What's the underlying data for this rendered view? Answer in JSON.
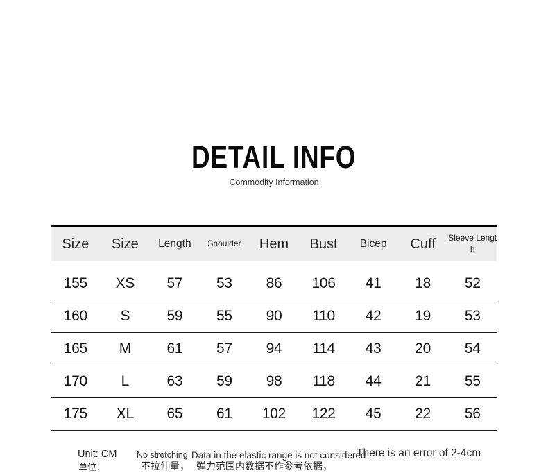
{
  "page": {
    "title": "DETAIL INFO",
    "subtitle": "Commodity Information"
  },
  "table": {
    "columns": [
      {
        "label": "Size"
      },
      {
        "label": "Size"
      },
      {
        "label": "Length"
      },
      {
        "label": "Shoulder"
      },
      {
        "label": "Hem"
      },
      {
        "label": "Bust"
      },
      {
        "label": "Bicep"
      },
      {
        "label": "Cuff"
      },
      {
        "label": "Sleeve Length"
      }
    ],
    "rows": [
      [
        "155",
        "XS",
        "57",
        "53",
        "86",
        "106",
        "41",
        "18",
        "52"
      ],
      [
        "160",
        "S",
        "59",
        "55",
        "90",
        "110",
        "42",
        "19",
        "53"
      ],
      [
        "165",
        "M",
        "61",
        "57",
        "94",
        "114",
        "43",
        "20",
        "54"
      ],
      [
        "170",
        "L",
        "63",
        "59",
        "98",
        "118",
        "44",
        "21",
        "55"
      ],
      [
        "175",
        "XL",
        "65",
        "61",
        "102",
        "122",
        "45",
        "22",
        "56"
      ]
    ]
  },
  "footer": {
    "unit": "Unit: CM",
    "note_stretch": "No stretching",
    "note_elastic": "Data in the elastic range is not considered",
    "note_error": "There is an error of 2-4cm",
    "unit_cn": "单位：",
    "note_stretch_cn": "不拉伸量，",
    "note_elastic_cn": "弹力范围内数据不作参考依据，"
  },
  "colors": {
    "header_bg": "#ededed",
    "border": "#1a1a1a",
    "text": "#141414"
  }
}
